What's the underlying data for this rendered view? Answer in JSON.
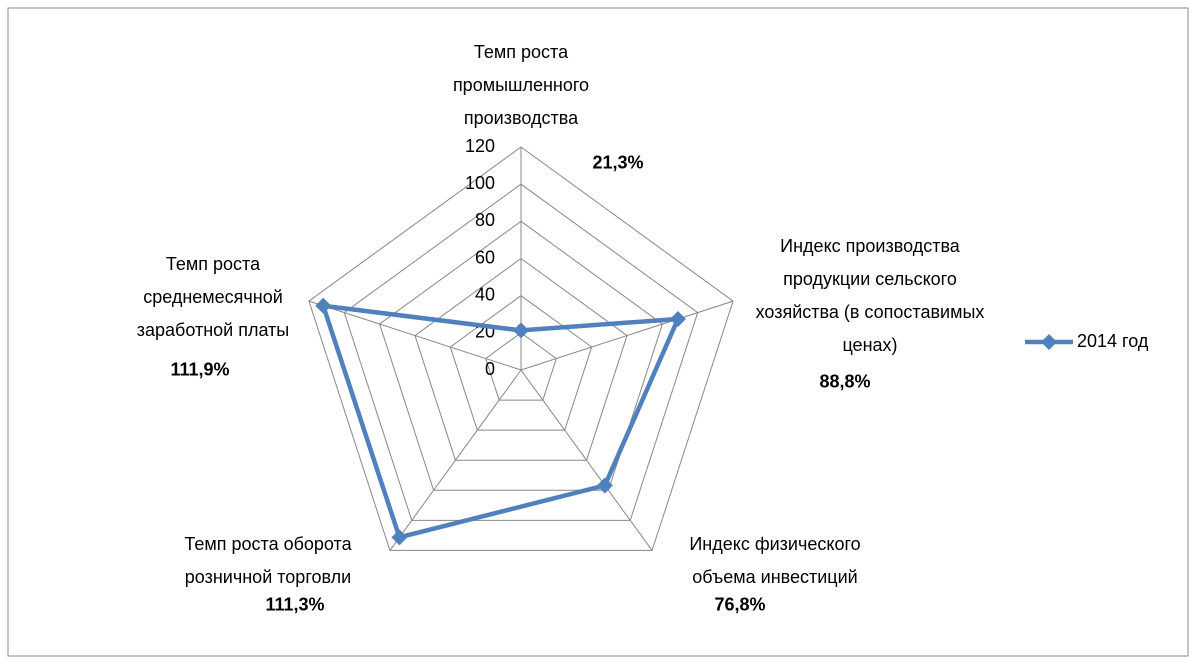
{
  "chart_data": {
    "type": "radar",
    "categories": [
      "Темп роста промышленного производства",
      "Индекс производства продукции сельского хозяйства (в сопоставимых ценах)",
      "Индекс физического объема инвестиций",
      "Темп роста оборота розничной торговли",
      "Темп роста среднемесячной заработной платы"
    ],
    "series": [
      {
        "name": "2014 год",
        "color": "#4f81bd",
        "values": [
          21.3,
          88.8,
          76.8,
          111.3,
          111.9
        ],
        "value_labels": [
          "21,3%",
          "88,8%",
          "76,8%",
          "111,3%",
          "111,9%"
        ]
      }
    ],
    "ylim": [
      0,
      120
    ],
    "yticks": [
      0,
      20,
      40,
      60,
      80,
      100,
      120
    ],
    "grid": true,
    "legend": "right"
  }
}
